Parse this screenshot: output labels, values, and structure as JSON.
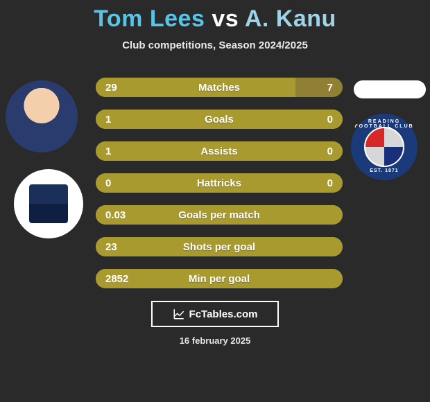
{
  "title": {
    "player1": "Tom Lees",
    "vs": "vs",
    "player2": "A. Kanu"
  },
  "subtitle": "Club competitions, Season 2024/2025",
  "colors": {
    "player1": "#57c5e8",
    "vs": "#ffffff",
    "player2": "#9fd4e8",
    "bar_track": "#8f8034",
    "bar_fill": "#a89a2f",
    "background": "#2a2a2a"
  },
  "bars": [
    {
      "label": "Matches",
      "left": "29",
      "right": "7",
      "fill_pct": 81
    },
    {
      "label": "Goals",
      "left": "1",
      "right": "0",
      "fill_pct": 100
    },
    {
      "label": "Assists",
      "left": "1",
      "right": "0",
      "fill_pct": 100
    },
    {
      "label": "Hattricks",
      "left": "0",
      "right": "0",
      "fill_pct": 100
    },
    {
      "label": "Goals per match",
      "left": "0.03",
      "right": "",
      "fill_pct": 100
    },
    {
      "label": "Shots per goal",
      "left": "23",
      "right": "",
      "fill_pct": 100
    },
    {
      "label": "Min per goal",
      "left": "2852",
      "right": "",
      "fill_pct": 100
    }
  ],
  "brand": "FcTables.com",
  "date": "16 february 2025",
  "badges": {
    "right_top": "READING FOOTBALL CLUB",
    "right_bot": "EST. 1871"
  }
}
